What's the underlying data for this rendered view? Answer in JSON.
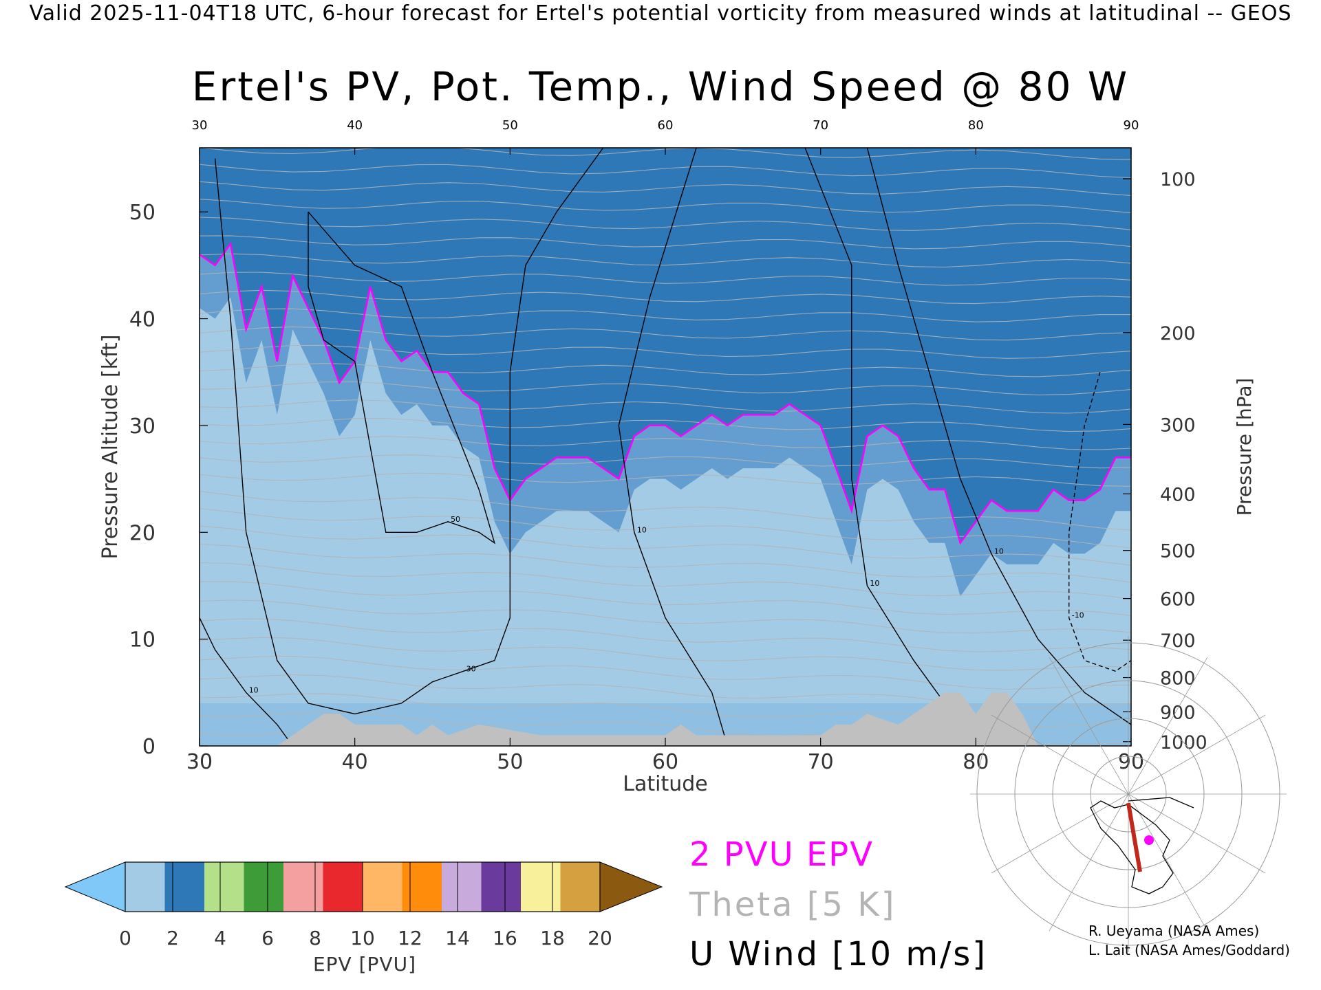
{
  "header": "Valid 2025-11-04T18 UTC, 6-hour forecast for Ertel's potential vorticity from measured winds at latitudinal -- GEOS",
  "chart_data": {
    "type": "heatmap",
    "title": "Ertel's PV, Pot. Temp., Wind Speed @ 80 W",
    "xlabel": "Latitude",
    "ylabel": "Pressure Altitude [kft]",
    "y2label": "Pressure [hPa]",
    "xlim": [
      30,
      90
    ],
    "ylim": [
      0,
      56
    ],
    "x_ticks": [
      30,
      40,
      50,
      60,
      70,
      80,
      90
    ],
    "top_x_ticks": [
      30,
      40,
      50,
      60,
      70,
      80,
      90
    ],
    "y_ticks": [
      0,
      10,
      20,
      30,
      40,
      50
    ],
    "pressure_ticks": [
      {
        "hPa": 100,
        "kft": 53.1
      },
      {
        "hPa": 200,
        "kft": 38.7
      },
      {
        "hPa": 300,
        "kft": 30.1
      },
      {
        "hPa": 400,
        "kft": 23.6
      },
      {
        "hPa": 500,
        "kft": 18.3
      },
      {
        "hPa": 600,
        "kft": 13.8
      },
      {
        "hPa": 700,
        "kft": 9.9
      },
      {
        "hPa": 800,
        "kft": 6.4
      },
      {
        "hPa": 900,
        "kft": 3.2
      },
      {
        "hPa": 1000,
        "kft": 0.4
      }
    ],
    "pv_2pvu_tropopause": [
      [
        30,
        46
      ],
      [
        31,
        45
      ],
      [
        32,
        47
      ],
      [
        33,
        39
      ],
      [
        34,
        43
      ],
      [
        35,
        36
      ],
      [
        36,
        44
      ],
      [
        37,
        41
      ],
      [
        38,
        38
      ],
      [
        39,
        34
      ],
      [
        40,
        36
      ],
      [
        41,
        43
      ],
      [
        42,
        38
      ],
      [
        43,
        36
      ],
      [
        44,
        37
      ],
      [
        45,
        35
      ],
      [
        46,
        35
      ],
      [
        47,
        33
      ],
      [
        48,
        32
      ],
      [
        49,
        26
      ],
      [
        50,
        23
      ],
      [
        51,
        25
      ],
      [
        52,
        26
      ],
      [
        53,
        27
      ],
      [
        54,
        27
      ],
      [
        55,
        27
      ],
      [
        56,
        26
      ],
      [
        57,
        25
      ],
      [
        58,
        29
      ],
      [
        59,
        30
      ],
      [
        60,
        30
      ],
      [
        61,
        29
      ],
      [
        62,
        30
      ],
      [
        63,
        31
      ],
      [
        64,
        30
      ],
      [
        65,
        31
      ],
      [
        66,
        31
      ],
      [
        67,
        31
      ],
      [
        68,
        32
      ],
      [
        69,
        31
      ],
      [
        70,
        30
      ],
      [
        71,
        26
      ],
      [
        72,
        22
      ],
      [
        73,
        29
      ],
      [
        74,
        30
      ],
      [
        75,
        29
      ],
      [
        76,
        26
      ],
      [
        77,
        24
      ],
      [
        78,
        24
      ],
      [
        79,
        19
      ],
      [
        80,
        21
      ],
      [
        81,
        23
      ],
      [
        82,
        22
      ],
      [
        83,
        22
      ],
      [
        84,
        22
      ],
      [
        85,
        24
      ],
      [
        86,
        23
      ],
      [
        87,
        23
      ],
      [
        88,
        24
      ],
      [
        89,
        27
      ],
      [
        90,
        27
      ]
    ],
    "pv_band_offsets_kft": [
      {
        "pvu": 2,
        "offset": 0
      },
      {
        "pvu": 4,
        "offset": 2.5
      },
      {
        "pvu": 6,
        "offset": 5
      },
      {
        "pvu": 8,
        "offset": 7.5
      },
      {
        "pvu": 10,
        "offset": 11
      },
      {
        "pvu": 12,
        "offset": 15
      },
      {
        "pvu": 14,
        "offset": 19.5
      },
      {
        "pvu": 16,
        "offset": 22.5
      },
      {
        "pvu": 18,
        "offset": 26
      },
      {
        "pvu": 20,
        "offset": 29
      }
    ],
    "topography_kft": [
      [
        30,
        0
      ],
      [
        35,
        0
      ],
      [
        36,
        1
      ],
      [
        37,
        2
      ],
      [
        38,
        3
      ],
      [
        39,
        3
      ],
      [
        40,
        2
      ],
      [
        43,
        2
      ],
      [
        44,
        1
      ],
      [
        45,
        2
      ],
      [
        46,
        1
      ],
      [
        48,
        2
      ],
      [
        52,
        1
      ],
      [
        55,
        1
      ],
      [
        58,
        1
      ],
      [
        60,
        1
      ],
      [
        61,
        2
      ],
      [
        62,
        1
      ],
      [
        65,
        1
      ],
      [
        70,
        1
      ],
      [
        71,
        2
      ],
      [
        72,
        2
      ],
      [
        73,
        3
      ],
      [
        75,
        2
      ],
      [
        76,
        3
      ],
      [
        77,
        4
      ],
      [
        78,
        5
      ],
      [
        79,
        5
      ],
      [
        80,
        3
      ],
      [
        81,
        5
      ],
      [
        82,
        5
      ],
      [
        83,
        3
      ],
      [
        84,
        0
      ],
      [
        90,
        0
      ]
    ],
    "u_wind_contours": [
      {
        "label": "10",
        "points": [
          [
            30,
            12
          ],
          [
            31,
            9
          ],
          [
            33,
            5
          ],
          [
            35,
            2
          ],
          [
            36,
            0
          ]
        ]
      },
      {
        "label": "30",
        "points": [
          [
            31,
            55
          ],
          [
            32,
            40
          ],
          [
            33,
            20
          ],
          [
            35,
            8
          ],
          [
            37,
            4
          ],
          [
            40,
            3
          ],
          [
            43,
            4
          ],
          [
            45,
            6
          ],
          [
            47,
            7
          ],
          [
            49,
            8
          ],
          [
            50,
            12
          ],
          [
            50,
            20
          ],
          [
            50,
            35
          ],
          [
            51,
            45
          ],
          [
            53,
            50
          ],
          [
            56,
            56
          ]
        ]
      },
      {
        "label": "50",
        "points": [
          [
            37,
            50
          ],
          [
            40,
            45
          ],
          [
            43,
            43
          ],
          [
            45,
            35
          ],
          [
            48,
            24
          ],
          [
            49,
            19
          ],
          [
            48,
            20
          ],
          [
            46,
            21
          ],
          [
            44,
            20
          ],
          [
            42,
            20
          ],
          [
            41,
            28
          ],
          [
            40,
            36
          ],
          [
            38,
            38
          ],
          [
            37,
            43
          ],
          [
            37,
            50
          ]
        ]
      },
      {
        "label": "10",
        "points": [
          [
            62,
            56
          ],
          [
            59,
            42
          ],
          [
            57,
            30
          ],
          [
            58,
            20
          ],
          [
            60,
            12
          ],
          [
            63,
            5
          ],
          [
            64,
            0
          ]
        ]
      },
      {
        "label": "10",
        "points": [
          [
            69,
            56
          ],
          [
            72,
            45
          ],
          [
            72,
            35
          ],
          [
            72,
            25
          ],
          [
            73,
            15
          ],
          [
            76,
            8
          ],
          [
            78,
            4
          ],
          [
            80,
            0
          ]
        ]
      },
      {
        "label": "10",
        "points": [
          [
            73,
            56
          ],
          [
            75,
            45
          ],
          [
            77,
            35
          ],
          [
            79,
            25
          ],
          [
            81,
            18
          ],
          [
            84,
            10
          ],
          [
            87,
            5
          ],
          [
            90,
            2
          ]
        ]
      },
      {
        "label": "-10",
        "points": [
          [
            88,
            35
          ],
          [
            87,
            30
          ],
          [
            86,
            20
          ],
          [
            86,
            12
          ],
          [
            87,
            8
          ],
          [
            89,
            7
          ],
          [
            90,
            8
          ]
        ]
      }
    ]
  },
  "colorbar": {
    "label": "EPV [PVU]",
    "ticks": [
      "0",
      "2",
      "4",
      "6",
      "8",
      "10",
      "12",
      "14",
      "16",
      "18",
      "20"
    ],
    "under_color": "#7fc8f8",
    "over_color": "#8b5a10",
    "colors": [
      "#a4cbe6",
      "#2e78b8",
      "#b5e08a",
      "#3d9b38",
      "#f4a0a0",
      "#e8282c",
      "#ffb766",
      "#ff8c0a",
      "#c8aadc",
      "#6a3a9c",
      "#f8f09a",
      "#d4a040"
    ]
  },
  "legend": {
    "pv": "2 PVU EPV",
    "theta": "Theta [5 K]",
    "u": "U Wind [10 m/s]"
  },
  "credits": [
    "R. Ueyama (NASA Ames)",
    "L. Lait (NASA Ames/Goddard)"
  ],
  "colors": {
    "pv_line": "#ff00ff",
    "theta": "#b4b4b4",
    "topography": "#c0c0c0",
    "track": "#c0281c"
  }
}
